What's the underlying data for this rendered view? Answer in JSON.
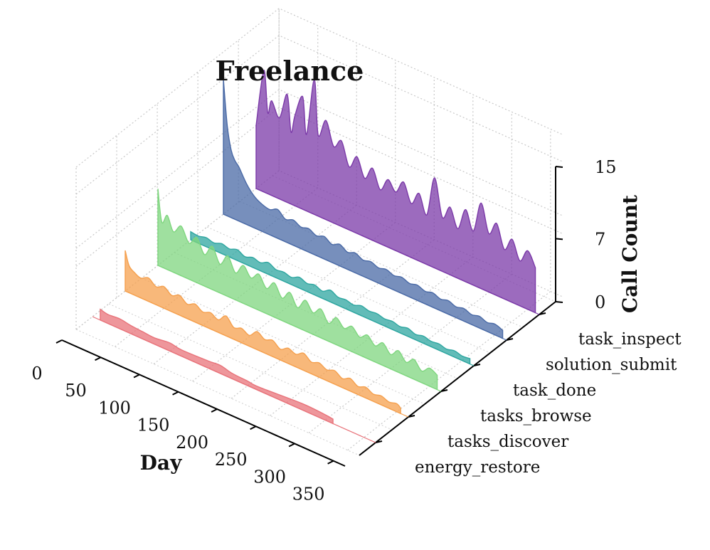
{
  "chart_data": {
    "type": "area",
    "subtype": "3d-ridgeline",
    "title": "Freelance",
    "xlabel": "Day",
    "zlabel": "Call Count",
    "xlim": [
      0,
      365
    ],
    "zlim": [
      0,
      15
    ],
    "x_ticks": [
      0,
      50,
      100,
      150,
      200,
      250,
      300,
      350
    ],
    "z_ticks": [
      0,
      7,
      15
    ],
    "categories": [
      "energy_restore",
      "tasks_discover",
      "tasks_browse",
      "task_done",
      "solution_submit",
      "task_inspect"
    ],
    "series": [
      {
        "name": "energy_restore",
        "color": "#e8737a",
        "points": [
          [
            10,
            1.2
          ],
          [
            20,
            1.0
          ],
          [
            35,
            1.1
          ],
          [
            50,
            0.9
          ],
          [
            65,
            0.8
          ],
          [
            80,
            0.7
          ],
          [
            100,
            0.9
          ],
          [
            115,
            0.7
          ],
          [
            150,
            0.8
          ],
          [
            165,
            0.9
          ],
          [
            180,
            0.6
          ],
          [
            200,
            0.5
          ],
          [
            215,
            0.4
          ],
          [
            270,
            0.7
          ],
          [
            300,
            0.6
          ],
          [
            310,
            0.5
          ]
        ]
      },
      {
        "name": "tasks_discover",
        "color": "#f5a04e",
        "points": [
          [
            0,
            4.5
          ],
          [
            5,
            3.0
          ],
          [
            12,
            2.5
          ],
          [
            20,
            2.2
          ],
          [
            30,
            2.6
          ],
          [
            40,
            2.0
          ],
          [
            50,
            2.4
          ],
          [
            60,
            1.8
          ],
          [
            70,
            2.2
          ],
          [
            80,
            1.6
          ],
          [
            90,
            2.0
          ],
          [
            100,
            1.5
          ],
          [
            110,
            1.8
          ],
          [
            120,
            1.4
          ],
          [
            130,
            2.2
          ],
          [
            140,
            1.3
          ],
          [
            150,
            1.6
          ],
          [
            160,
            1.2
          ],
          [
            170,
            2.0
          ],
          [
            180,
            1.5
          ],
          [
            190,
            1.8
          ],
          [
            200,
            1.2
          ],
          [
            210,
            1.7
          ],
          [
            220,
            1.4
          ],
          [
            230,
            1.9
          ],
          [
            240,
            1.3
          ],
          [
            250,
            1.6
          ],
          [
            260,
            1.2
          ],
          [
            270,
            1.5
          ],
          [
            280,
            1.0
          ],
          [
            290,
            1.4
          ],
          [
            300,
            0.9
          ],
          [
            310,
            1.2
          ],
          [
            320,
            0.8
          ],
          [
            330,
            1.0
          ],
          [
            340,
            0.7
          ],
          [
            350,
            0.9
          ],
          [
            355,
            0.6
          ]
        ]
      },
      {
        "name": "tasks_browse",
        "color": "#7fd67f",
        "points": [
          [
            0,
            8.5
          ],
          [
            5,
            5.0
          ],
          [
            12,
            6.0
          ],
          [
            20,
            4.5
          ],
          [
            30,
            5.5
          ],
          [
            40,
            4.0
          ],
          [
            50,
            5.0
          ],
          [
            60,
            3.5
          ],
          [
            70,
            4.8
          ],
          [
            80,
            3.2
          ],
          [
            90,
            4.5
          ],
          [
            100,
            3.0
          ],
          [
            110,
            4.2
          ],
          [
            120,
            3.2
          ],
          [
            130,
            4.0
          ],
          [
            140,
            2.8
          ],
          [
            150,
            3.8
          ],
          [
            160,
            2.5
          ],
          [
            170,
            3.5
          ],
          [
            180,
            2.2
          ],
          [
            190,
            3.4
          ],
          [
            200,
            2.4
          ],
          [
            210,
            3.2
          ],
          [
            220,
            2.0
          ],
          [
            230,
            3.0
          ],
          [
            240,
            2.2
          ],
          [
            250,
            2.8
          ],
          [
            260,
            2.0
          ],
          [
            270,
            2.6
          ],
          [
            280,
            1.8
          ],
          [
            290,
            2.5
          ],
          [
            300,
            1.6
          ],
          [
            310,
            2.4
          ],
          [
            320,
            1.5
          ],
          [
            330,
            2.2
          ],
          [
            340,
            1.3
          ],
          [
            350,
            2.0
          ],
          [
            360,
            1.6
          ]
        ]
      },
      {
        "name": "task_done",
        "color": "#2ea6a0",
        "points": [
          [
            0,
            0.9
          ],
          [
            10,
            0.8
          ],
          [
            20,
            1.0
          ],
          [
            30,
            0.8
          ],
          [
            40,
            1.1
          ],
          [
            50,
            0.9
          ],
          [
            60,
            1.2
          ],
          [
            70,
            0.8
          ],
          [
            80,
            1.1
          ],
          [
            90,
            0.9
          ],
          [
            100,
            1.3
          ],
          [
            110,
            0.9
          ],
          [
            120,
            1.0
          ],
          [
            130,
            0.8
          ],
          [
            140,
            1.2
          ],
          [
            150,
            0.9
          ],
          [
            160,
            1.1
          ],
          [
            170,
            0.8
          ],
          [
            180,
            1.3
          ],
          [
            190,
            0.9
          ],
          [
            200,
            1.0
          ],
          [
            210,
            0.8
          ],
          [
            220,
            1.1
          ],
          [
            230,
            0.9
          ],
          [
            240,
            1.0
          ],
          [
            250,
            0.8
          ],
          [
            260,
            0.9
          ],
          [
            270,
            0.7
          ],
          [
            280,
            0.9
          ],
          [
            290,
            0.6
          ],
          [
            300,
            0.8
          ],
          [
            310,
            0.6
          ],
          [
            320,
            0.7
          ],
          [
            330,
            0.5
          ],
          [
            340,
            0.7
          ],
          [
            350,
            0.5
          ],
          [
            360,
            0.6
          ]
        ]
      },
      {
        "name": "solution_submit",
        "color": "#4a6aa6",
        "points": [
          [
            0,
            15.0
          ],
          [
            5,
            10.0
          ],
          [
            10,
            7.5
          ],
          [
            15,
            6.5
          ],
          [
            20,
            6.0
          ],
          [
            30,
            4.5
          ],
          [
            40,
            3.5
          ],
          [
            50,
            3.0
          ],
          [
            60,
            2.8
          ],
          [
            70,
            3.2
          ],
          [
            80,
            2.5
          ],
          [
            90,
            2.8
          ],
          [
            100,
            2.4
          ],
          [
            110,
            2.6
          ],
          [
            120,
            2.2
          ],
          [
            130,
            2.5
          ],
          [
            140,
            2.0
          ],
          [
            150,
            2.4
          ],
          [
            160,
            1.9
          ],
          [
            170,
            2.2
          ],
          [
            180,
            1.8
          ],
          [
            190,
            2.0
          ],
          [
            200,
            1.7
          ],
          [
            210,
            1.9
          ],
          [
            220,
            1.6
          ],
          [
            230,
            1.8
          ],
          [
            240,
            1.5
          ],
          [
            250,
            1.7
          ],
          [
            260,
            1.4
          ],
          [
            270,
            1.6
          ],
          [
            280,
            1.3
          ],
          [
            290,
            1.5
          ],
          [
            300,
            1.2
          ],
          [
            310,
            1.4
          ],
          [
            320,
            1.1
          ],
          [
            330,
            1.3
          ],
          [
            340,
            1.0
          ],
          [
            350,
            1.2
          ],
          [
            360,
            0.9
          ]
        ]
      },
      {
        "name": "task_inspect",
        "color": "#7b3aa8",
        "points": [
          [
            0,
            7.0
          ],
          [
            10,
            13.5
          ],
          [
            15,
            9.0
          ],
          [
            20,
            10.5
          ],
          [
            30,
            9.0
          ],
          [
            40,
            12.0
          ],
          [
            45,
            8.0
          ],
          [
            50,
            10.0
          ],
          [
            60,
            12.5
          ],
          [
            65,
            8.5
          ],
          [
            75,
            15.0
          ],
          [
            80,
            9.0
          ],
          [
            90,
            11.0
          ],
          [
            100,
            8.5
          ],
          [
            110,
            9.5
          ],
          [
            120,
            7.0
          ],
          [
            130,
            8.5
          ],
          [
            140,
            6.5
          ],
          [
            150,
            8.0
          ],
          [
            160,
            6.0
          ],
          [
            170,
            7.5
          ],
          [
            180,
            6.5
          ],
          [
            190,
            8.0
          ],
          [
            200,
            6.0
          ],
          [
            210,
            7.5
          ],
          [
            220,
            5.5
          ],
          [
            230,
            10.0
          ],
          [
            240,
            6.0
          ],
          [
            250,
            7.5
          ],
          [
            260,
            5.5
          ],
          [
            270,
            8.0
          ],
          [
            280,
            6.0
          ],
          [
            290,
            9.5
          ],
          [
            300,
            6.5
          ],
          [
            310,
            8.0
          ],
          [
            320,
            5.5
          ],
          [
            330,
            7.0
          ],
          [
            340,
            5.0
          ],
          [
            350,
            6.5
          ],
          [
            360,
            5.0
          ]
        ]
      }
    ]
  }
}
